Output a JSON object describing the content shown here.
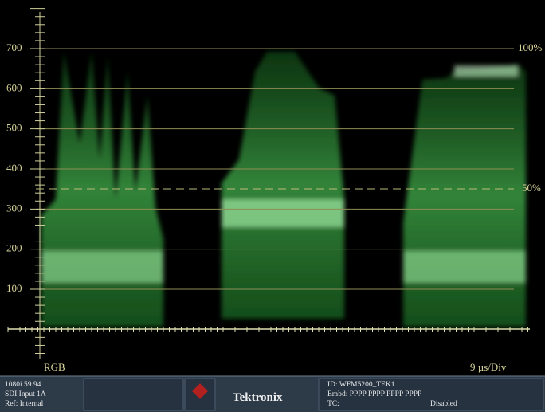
{
  "graticule": {
    "labels": [
      "700",
      "600",
      "500",
      "400",
      "300",
      "200",
      "100"
    ],
    "right_top": "100%",
    "right_mid": "50%"
  },
  "display": {
    "mode": "RGB",
    "timebase": "9 µs/Div"
  },
  "status": {
    "format": "1080i 59.94",
    "input": "SDI Input 1A",
    "ref": "Ref: Internal",
    "brand": "Tektronix",
    "id": "ID: WFM5200_TEK1",
    "embd": "Embd: PPPP PPPP PPPP PPPP",
    "tc_label": "TC:",
    "tc_value": "Disabled"
  }
}
